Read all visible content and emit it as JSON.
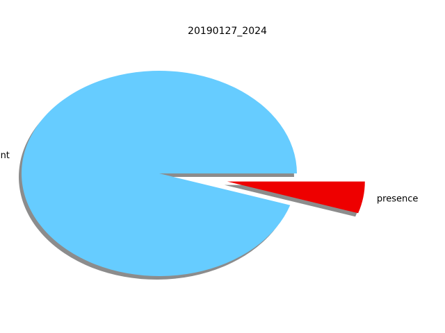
{
  "chart_data": {
    "type": "pie",
    "title": "20190127_2024",
    "labels": [
      "absent",
      "presence"
    ],
    "values": [
      95,
      5
    ],
    "colors": [
      "#66ccff",
      "#ee0000"
    ],
    "explode": [
      0,
      0.5
    ],
    "shadow": true,
    "start_angle_deg": 0,
    "direction": "counterclockwise"
  }
}
